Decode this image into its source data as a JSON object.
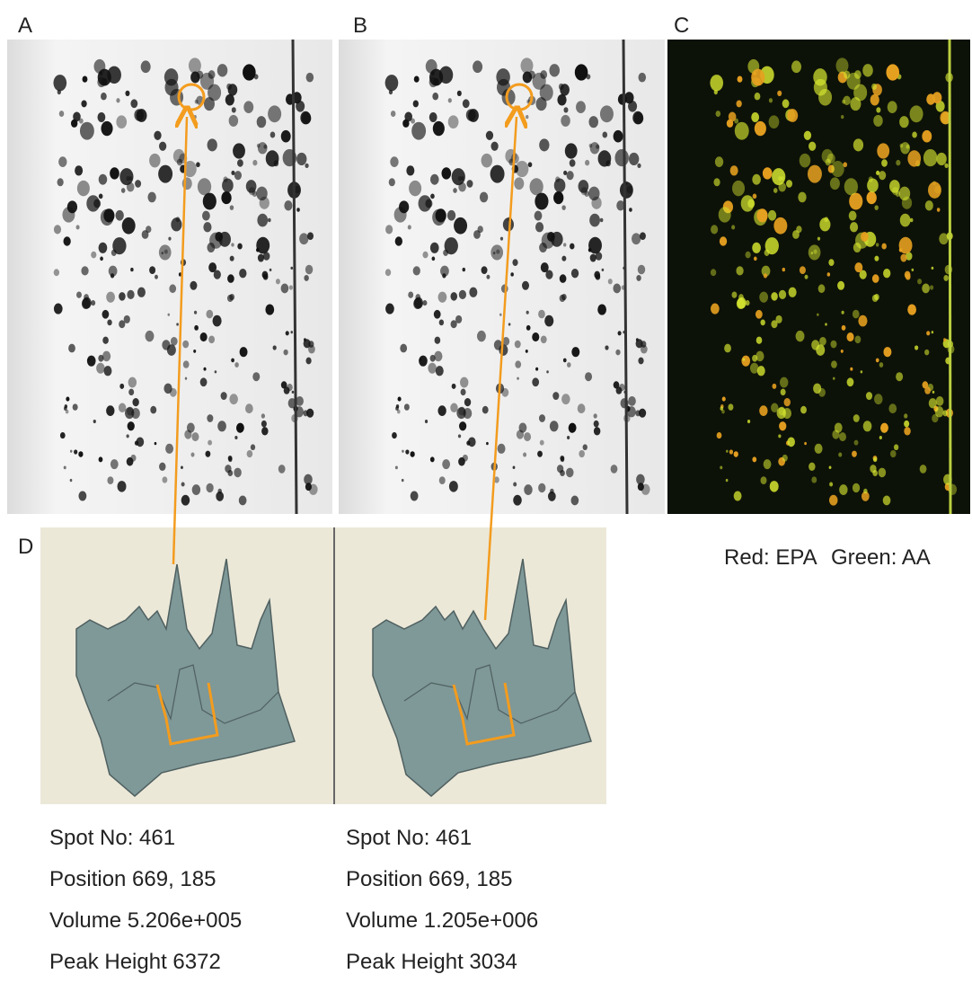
{
  "panels": [
    {
      "label": "A"
    },
    {
      "label": "B"
    },
    {
      "label": "C"
    }
  ],
  "panel_d": {
    "label": "D"
  },
  "legend": {
    "red": "Red: EPA",
    "green": "Green: AA"
  },
  "spots": [
    {
      "lines": [
        "Spot No: 461",
        "Position 669, 185",
        "Volume 5.206e+005",
        "Peak Height 6372"
      ]
    },
    {
      "lines": [
        "Spot No: 461",
        "Position 669, 185",
        "Volume 1.205e+006",
        "Peak Height 3034"
      ]
    }
  ]
}
